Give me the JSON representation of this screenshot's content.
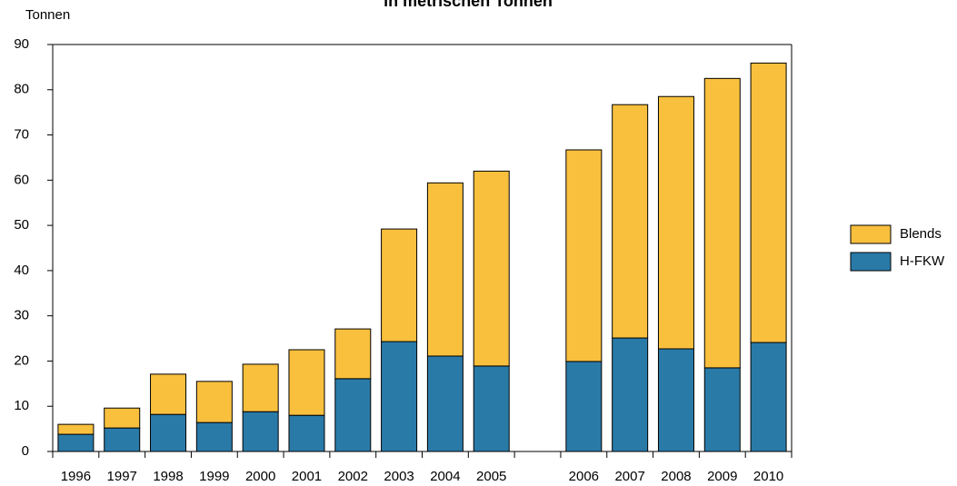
{
  "chart_data": {
    "type": "stacked_bar",
    "title": "in metrischen Tonnen",
    "y_label": "Tonnen",
    "categories": [
      "1996",
      "1997",
      "1998",
      "1999",
      "2000",
      "2001",
      "2002",
      "2003",
      "2004",
      "2005",
      null,
      "2006",
      "2007",
      "2008",
      "2009",
      "2010"
    ],
    "series": [
      {
        "name": "H-FKW",
        "color": "#2a7aa8",
        "values": [
          3.8,
          5.2,
          8.2,
          6.4,
          8.8,
          8.0,
          16.1,
          24.3,
          21.1,
          18.9,
          null,
          19.9,
          25.1,
          22.7,
          18.5,
          24.1
        ]
      },
      {
        "name": "Blends",
        "color": "#f9c03e",
        "values": [
          2.2,
          4.4,
          8.9,
          9.1,
          10.5,
          14.5,
          11.0,
          24.9,
          38.3,
          43.1,
          null,
          46.8,
          51.6,
          55.8,
          64.0,
          61.8
        ]
      }
    ],
    "ylim": [
      0,
      90
    ],
    "yticks": [
      0,
      10,
      20,
      30,
      40,
      50,
      60,
      70,
      80,
      90
    ],
    "legend": "right"
  }
}
